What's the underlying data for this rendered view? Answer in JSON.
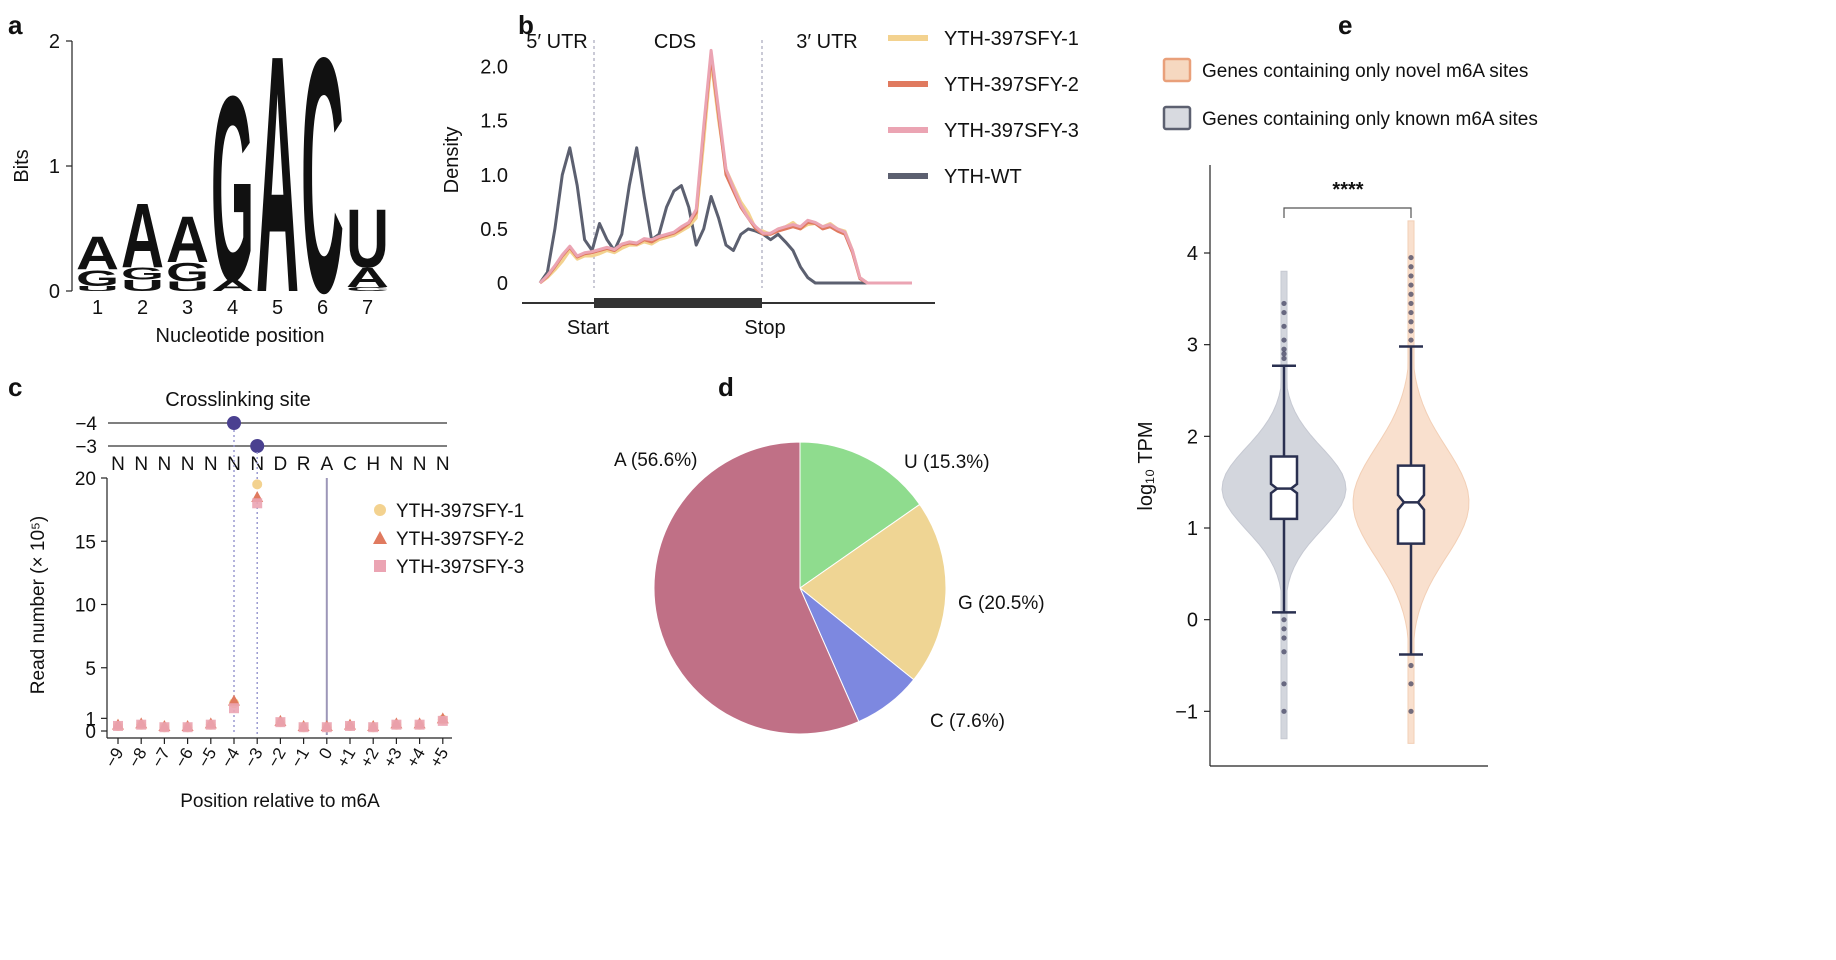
{
  "panel_labels": {
    "a": "a",
    "b": "b",
    "c": "c",
    "d": "d",
    "e": "e"
  },
  "chart_data": [
    {
      "panel": "a",
      "type": "sequence-logo",
      "xlabel": "Nucleotide position",
      "ylabel": "Bits",
      "ylim": [
        0,
        2
      ],
      "yticks": [
        "0",
        "1",
        "2"
      ],
      "positions": [
        "1",
        "2",
        "3",
        "4",
        "5",
        "6",
        "7"
      ],
      "letters": [
        [
          {
            "base": "U",
            "bits": 0.04
          },
          {
            "base": "G",
            "bits": 0.13
          },
          {
            "base": "A",
            "bits": 0.27
          }
        ],
        [
          {
            "base": "U",
            "bits": 0.09
          },
          {
            "base": "G",
            "bits": 0.1
          },
          {
            "base": "A",
            "bits": 0.53
          }
        ],
        [
          {
            "base": "U",
            "bits": 0.08
          },
          {
            "base": "G",
            "bits": 0.15
          },
          {
            "base": "A",
            "bits": 0.38
          }
        ],
        [
          {
            "base": "A",
            "bits": 0.09
          },
          {
            "base": "G",
            "bits": 1.52
          }
        ],
        [
          {
            "base": "A",
            "bits": 1.95
          }
        ],
        [
          {
            "base": "C",
            "bits": 1.93
          }
        ],
        [
          {
            "base": "C",
            "bits": 0.03
          },
          {
            "base": "A",
            "bits": 0.16
          },
          {
            "base": "U",
            "bits": 0.48
          }
        ]
      ],
      "colors": {
        "A": "#cc2a22",
        "G": "#f2b13d",
        "C": "#1020c8",
        "U": "#2e8a2e"
      }
    },
    {
      "panel": "b",
      "type": "line",
      "ylabel": "Density",
      "yticks": [
        "0",
        "0.5",
        "1.0",
        "1.5",
        "2.0"
      ],
      "ylim": [
        0,
        2.2
      ],
      "region_labels": [
        "5′ UTR",
        "CDS",
        "3′ UTR"
      ],
      "gene_labels": [
        "Start",
        "Stop"
      ],
      "x": [
        0.0,
        0.02,
        0.04,
        0.06,
        0.08,
        0.1,
        0.12,
        0.14,
        0.16,
        0.18,
        0.2,
        0.22,
        0.24,
        0.26,
        0.28,
        0.3,
        0.32,
        0.34,
        0.36,
        0.38,
        0.4,
        0.42,
        0.44,
        0.46,
        0.48,
        0.5,
        0.52,
        0.54,
        0.56,
        0.58,
        0.6,
        0.62,
        0.64,
        0.66,
        0.68,
        0.7,
        0.72,
        0.74,
        0.76,
        0.78,
        0.8,
        0.82,
        0.84,
        0.86,
        0.88,
        0.9,
        0.92,
        0.94,
        0.96,
        0.98,
        1.0
      ],
      "series": [
        {
          "name": "YTH-397SFY-1",
          "color": "#f3d28f",
          "values": [
            0.0,
            0.05,
            0.12,
            0.2,
            0.3,
            0.22,
            0.25,
            0.25,
            0.27,
            0.3,
            0.28,
            0.32,
            0.35,
            0.35,
            0.38,
            0.36,
            0.4,
            0.42,
            0.44,
            0.48,
            0.52,
            0.6,
            1.3,
            2.05,
            1.5,
            1.05,
            0.9,
            0.75,
            0.65,
            0.5,
            0.48,
            0.45,
            0.5,
            0.52,
            0.56,
            0.5,
            0.54,
            0.55,
            0.52,
            0.55,
            0.5,
            0.48,
            0.3,
            0.05,
            0.0,
            0.0,
            0.0,
            0.0,
            0.0,
            0.0,
            0.0
          ]
        },
        {
          "name": "YTH-397SFY-2",
          "color": "#e07a5f",
          "values": [
            0.0,
            0.06,
            0.15,
            0.25,
            0.33,
            0.24,
            0.27,
            0.28,
            0.3,
            0.32,
            0.3,
            0.35,
            0.37,
            0.36,
            0.4,
            0.38,
            0.42,
            0.44,
            0.46,
            0.5,
            0.55,
            0.65,
            1.4,
            2.1,
            1.55,
            1.0,
            0.85,
            0.7,
            0.6,
            0.5,
            0.45,
            0.45,
            0.48,
            0.5,
            0.52,
            0.5,
            0.56,
            0.55,
            0.5,
            0.52,
            0.48,
            0.45,
            0.28,
            0.04,
            0.0,
            0.0,
            0.0,
            0.0,
            0.0,
            0.0,
            0.0
          ]
        },
        {
          "name": "YTH-397SFY-3",
          "color": "#eba4b3",
          "values": [
            0.0,
            0.07,
            0.16,
            0.26,
            0.34,
            0.25,
            0.28,
            0.29,
            0.31,
            0.33,
            0.31,
            0.36,
            0.38,
            0.37,
            0.41,
            0.4,
            0.43,
            0.45,
            0.47,
            0.52,
            0.56,
            0.68,
            1.45,
            2.15,
            1.6,
            1.05,
            0.88,
            0.72,
            0.6,
            0.52,
            0.46,
            0.46,
            0.5,
            0.52,
            0.54,
            0.52,
            0.58,
            0.56,
            0.52,
            0.54,
            0.5,
            0.47,
            0.3,
            0.05,
            0.0,
            0.0,
            0.0,
            0.0,
            0.0,
            0.0,
            0.0
          ]
        },
        {
          "name": "YTH-WT",
          "color": "#5c6070",
          "values": [
            0.0,
            0.1,
            0.5,
            1.0,
            1.25,
            0.9,
            0.4,
            0.3,
            0.55,
            0.4,
            0.3,
            0.45,
            0.9,
            1.25,
            0.8,
            0.4,
            0.45,
            0.7,
            0.85,
            0.9,
            0.7,
            0.35,
            0.5,
            0.8,
            0.6,
            0.35,
            0.3,
            0.45,
            0.5,
            0.48,
            0.45,
            0.4,
            0.45,
            0.38,
            0.3,
            0.15,
            0.05,
            0.0,
            0.0,
            0.0,
            0.0,
            0.0,
            0.0,
            0.0,
            0.0,
            0.0,
            0.0,
            0.0,
            0.0,
            0.0,
            0.0
          ]
        }
      ]
    },
    {
      "panel": "c",
      "type": "scatter",
      "title": "Crosslinking site",
      "xlabel": "Position relative to m6A",
      "ylabel": "Read number (× 10⁵)",
      "ylim": [
        0,
        21
      ],
      "yticks": [
        "0",
        "1",
        "5",
        "10",
        "15",
        "20"
      ],
      "x": [
        "−9",
        "−8",
        "−7",
        "−6",
        "−5",
        "−4",
        "−3",
        "−2",
        "−1",
        "0",
        "+1",
        "+2",
        "+3",
        "+4",
        "+5"
      ],
      "track_labels": [
        "−4",
        "−3"
      ],
      "motif": [
        "N",
        "N",
        "N",
        "N",
        "N",
        "N",
        "N",
        "D",
        "R",
        "A",
        "C",
        "H",
        "N",
        "N",
        "N"
      ],
      "series": [
        {
          "name": "YTH-397SFY-1",
          "marker": "circle",
          "color": "#f3d28f",
          "values": [
            0.4,
            0.5,
            0.3,
            0.3,
            0.5,
            2.2,
            19.5,
            0.7,
            0.3,
            0.3,
            0.4,
            0.3,
            0.5,
            0.5,
            0.9
          ]
        },
        {
          "name": "YTH-397SFY-2",
          "marker": "triangle",
          "color": "#e07a5f",
          "values": [
            0.5,
            0.6,
            0.4,
            0.4,
            0.6,
            2.4,
            18.5,
            0.8,
            0.4,
            0.4,
            0.5,
            0.4,
            0.6,
            0.6,
            1.0
          ]
        },
        {
          "name": "YTH-397SFY-3",
          "marker": "square",
          "color": "#eba4b3",
          "values": [
            0.4,
            0.5,
            0.3,
            0.3,
            0.5,
            1.8,
            18.0,
            0.7,
            0.3,
            0.3,
            0.4,
            0.3,
            0.5,
            0.5,
            0.8
          ]
        }
      ]
    },
    {
      "panel": "d",
      "type": "pie",
      "slices": [
        {
          "label": "A (56.6%)",
          "value": 56.6,
          "color": "#c07086"
        },
        {
          "label": "U (15.3%)",
          "value": 15.3,
          "color": "#8fdc8e"
        },
        {
          "label": "G (20.5%)",
          "value": 20.5,
          "color": "#efd594"
        },
        {
          "label": "C (7.6%)",
          "value": 7.6,
          "color": "#7d88e0"
        }
      ]
    },
    {
      "panel": "e",
      "type": "violin-box",
      "ylabel": "log₁₀ TPM",
      "yticks": [
        "−1",
        "0",
        "1",
        "2",
        "3",
        "4"
      ],
      "ylim": [
        -1.4,
        4.6
      ],
      "significance": "****",
      "legend": [
        {
          "label": "Genes containing only novel m6A sites",
          "color": "#f6d8c0",
          "border": "#e9a07a"
        },
        {
          "label": "Genes containing only known m6A sites",
          "color": "#d8dae0",
          "border": "#5c6070"
        }
      ],
      "groups": [
        {
          "name": "Genes containing only known m6A sites",
          "color": "#c9ccd5",
          "q1": 1.1,
          "median": 1.43,
          "q3": 1.78,
          "whisker_low": 0.08,
          "whisker_high": 2.77,
          "notch": [
            1.38,
            1.48
          ],
          "violin_min": -1.3,
          "violin_max": 3.8,
          "outliers": [
            3.45,
            3.35,
            3.2,
            3.05,
            2.95,
            2.9,
            2.85,
            0.0,
            -0.1,
            -0.2,
            -0.35,
            -0.7,
            -1.0
          ]
        },
        {
          "name": "Genes containing only novel m6A sites",
          "color": "#f8d9c2",
          "q1": 0.83,
          "median": 1.28,
          "q3": 1.68,
          "whisker_low": -0.38,
          "whisker_high": 2.98,
          "notch": [
            1.2,
            1.36
          ],
          "violin_min": -1.35,
          "violin_max": 4.35,
          "outliers": [
            3.95,
            3.85,
            3.75,
            3.65,
            3.55,
            3.45,
            3.35,
            3.25,
            3.15,
            3.05,
            -0.5,
            -0.7,
            -1.0
          ]
        }
      ]
    }
  ]
}
